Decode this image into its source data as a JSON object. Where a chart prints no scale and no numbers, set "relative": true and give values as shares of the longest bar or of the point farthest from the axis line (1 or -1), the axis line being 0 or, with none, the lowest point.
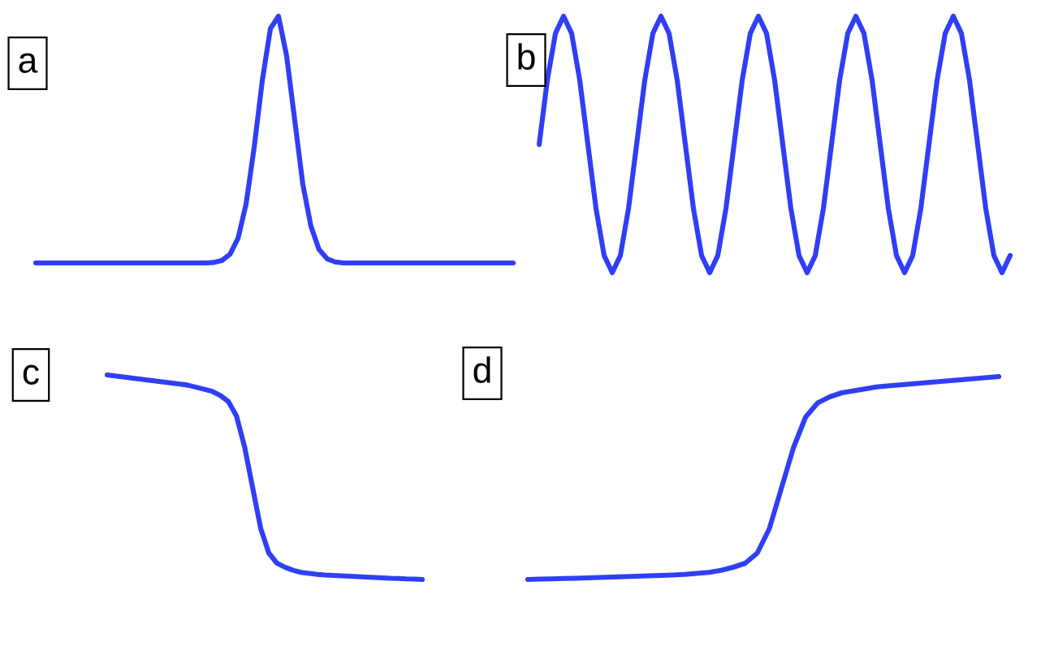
{
  "chart_data": [
    {
      "type": "line",
      "title": "a",
      "relative": true,
      "color": "#2f3ff5",
      "categories": [
        null,
        null,
        null,
        null,
        null,
        null,
        null,
        null,
        null,
        null,
        null,
        null,
        null,
        null,
        null,
        null,
        null,
        null,
        null,
        null,
        null,
        null,
        null,
        null,
        null,
        null,
        null,
        null,
        null,
        null,
        null,
        null,
        null,
        null,
        null,
        null,
        null,
        null,
        null,
        null,
        null,
        null,
        null,
        null,
        null,
        null,
        null,
        null,
        null,
        null,
        null,
        null,
        null,
        null,
        null,
        null,
        null,
        null,
        null,
        null
      ],
      "values": [
        0,
        0,
        0,
        0,
        0,
        0,
        0,
        0,
        0,
        0,
        0,
        0,
        0,
        0,
        0,
        0,
        0,
        0,
        0,
        0,
        0,
        0,
        0.002,
        0.01,
        0.035,
        0.1,
        0.24,
        0.47,
        0.74,
        0.95,
        1,
        0.84,
        0.58,
        0.32,
        0.15,
        0.055,
        0.017,
        0.004,
        0,
        0,
        0,
        0,
        0,
        0,
        0,
        0,
        0,
        0,
        0,
        0,
        0,
        0,
        0,
        0,
        0,
        0,
        0,
        0,
        0,
        0
      ]
    },
    {
      "type": "line",
      "title": "b",
      "relative": true,
      "color": "#2f3ff5",
      "categories": [
        null,
        null,
        null,
        null,
        null,
        null,
        null,
        null,
        null,
        null,
        null,
        null,
        null,
        null,
        null,
        null,
        null,
        null,
        null,
        null,
        null,
        null,
        null,
        null,
        null,
        null,
        null,
        null,
        null,
        null,
        null,
        null,
        null,
        null,
        null,
        null,
        null,
        null,
        null,
        null,
        null,
        null,
        null,
        null,
        null,
        null,
        null,
        null,
        null,
        null,
        null,
        null,
        null,
        null,
        null,
        null,
        null,
        null,
        null
      ],
      "values": [
        0.5,
        0.75,
        0.933,
        1,
        0.933,
        0.75,
        0.5,
        0.25,
        0.067,
        0,
        0.067,
        0.25,
        0.5,
        0.75,
        0.933,
        1,
        0.933,
        0.75,
        0.5,
        0.25,
        0.067,
        0,
        0.067,
        0.25,
        0.5,
        0.75,
        0.933,
        1,
        0.933,
        0.75,
        0.5,
        0.25,
        0.067,
        0,
        0.067,
        0.25,
        0.5,
        0.75,
        0.933,
        1,
        0.933,
        0.75,
        0.5,
        0.25,
        0.067,
        0,
        0.067,
        0.25,
        0.5,
        0.75,
        0.933,
        1,
        0.933,
        0.75,
        0.5,
        0.25,
        0.067,
        0,
        0.067
      ]
    },
    {
      "type": "line",
      "title": "c",
      "relative": true,
      "color": "#2f3ff5",
      "categories": [
        null,
        null,
        null,
        null,
        null,
        null,
        null,
        null,
        null,
        null,
        null,
        null,
        null,
        null,
        null,
        null,
        null,
        null,
        null,
        null,
        null,
        null,
        null,
        null,
        null,
        null,
        null,
        null,
        null,
        null,
        null,
        null,
        null,
        null,
        null,
        null,
        null,
        null,
        null,
        null
      ],
      "values": [
        1,
        0.995,
        0.99,
        0.985,
        0.98,
        0.975,
        0.97,
        0.965,
        0.96,
        0.955,
        0.95,
        0.94,
        0.93,
        0.92,
        0.9,
        0.87,
        0.8,
        0.65,
        0.45,
        0.25,
        0.13,
        0.08,
        0.06,
        0.045,
        0.035,
        0.03,
        0.025,
        0.022,
        0.02,
        0.018,
        0.016,
        0.014,
        0.012,
        0.01,
        0.008,
        0.006,
        0.005,
        0.003,
        0.002,
        0
      ]
    },
    {
      "type": "line",
      "title": "d",
      "relative": true,
      "color": "#2f3ff5",
      "categories": [
        null,
        null,
        null,
        null,
        null,
        null,
        null,
        null,
        null,
        null,
        null,
        null,
        null,
        null,
        null,
        null,
        null,
        null,
        null,
        null,
        null,
        null,
        null,
        null,
        null,
        null,
        null,
        null,
        null,
        null,
        null,
        null,
        null,
        null,
        null,
        null,
        null,
        null,
        null,
        null
      ],
      "values": [
        0,
        0.002,
        0.003,
        0.005,
        0.006,
        0.008,
        0.01,
        0.012,
        0.014,
        0.016,
        0.018,
        0.02,
        0.022,
        0.025,
        0.03,
        0.035,
        0.045,
        0.06,
        0.08,
        0.13,
        0.25,
        0.45,
        0.65,
        0.8,
        0.87,
        0.9,
        0.92,
        0.93,
        0.94,
        0.95,
        0.955,
        0.96,
        0.965,
        0.97,
        0.975,
        0.98,
        0.985,
        0.99,
        0.995,
        1
      ]
    }
  ]
}
